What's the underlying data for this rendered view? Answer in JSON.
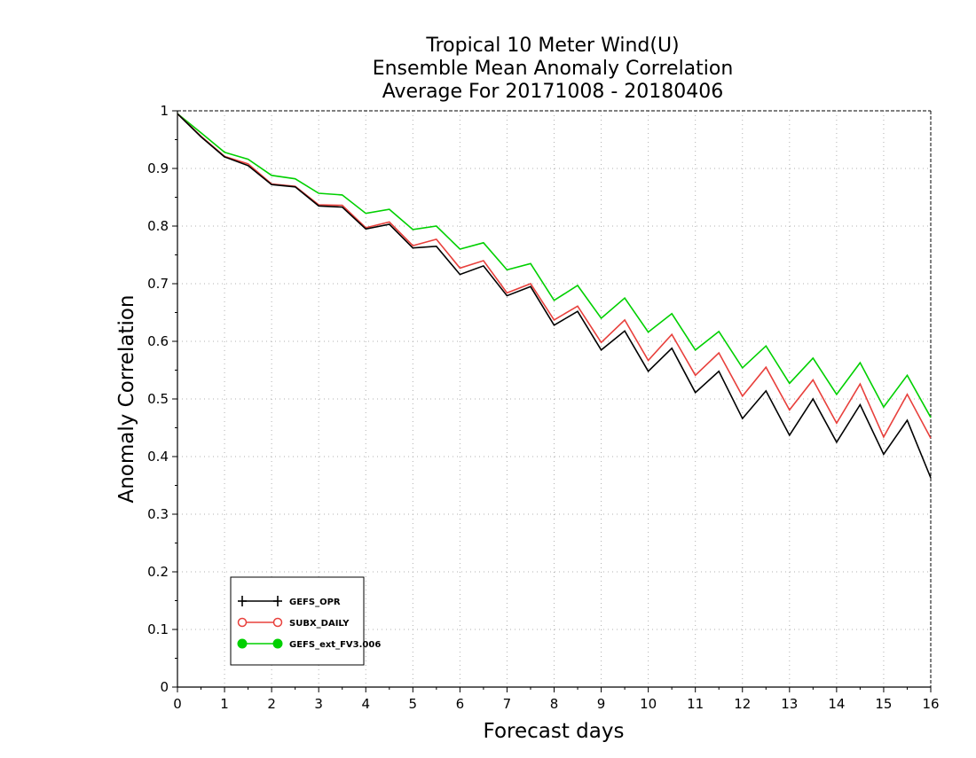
{
  "chart_data": {
    "type": "line",
    "title_lines": [
      "Tropical 10 Meter Wind(U)",
      "Ensemble Mean Anomaly Correlation",
      "Average For 20171008 - 20180406"
    ],
    "xlabel": "Forecast days",
    "ylabel": "Anomaly Correlation",
    "xlim": [
      0,
      16
    ],
    "ylim": [
      0,
      1
    ],
    "xticks": [
      "0",
      "1",
      "2",
      "3",
      "4",
      "5",
      "6",
      "7",
      "8",
      "9",
      "10",
      "11",
      "12",
      "13",
      "14",
      "15",
      "16"
    ],
    "yticks": [
      "0",
      "0.1",
      "0.2",
      "0.3",
      "0.4",
      "0.5",
      "0.6",
      "0.7",
      "0.8",
      "0.9",
      "1"
    ],
    "grid": true,
    "legend_position": "bottom-left",
    "x": [
      0,
      0.5,
      1,
      1.5,
      2,
      2.5,
      3,
      3.5,
      4,
      4.5,
      5,
      5.5,
      6,
      6.5,
      7,
      7.5,
      8,
      8.5,
      9,
      9.5,
      10,
      10.5,
      11,
      11.5,
      12,
      12.5,
      13,
      13.5,
      14,
      14.5,
      15,
      15.5,
      16
    ],
    "series": [
      {
        "name": "GEFS_OPR",
        "color": "#000000",
        "marker": "plus",
        "values": [
          0.995,
          0.955,
          0.92,
          0.905,
          0.872,
          0.868,
          0.835,
          0.833,
          0.795,
          0.803,
          0.762,
          0.765,
          0.716,
          0.731,
          0.679,
          0.695,
          0.628,
          0.652,
          0.585,
          0.618,
          0.548,
          0.588,
          0.511,
          0.548,
          0.466,
          0.514,
          0.437,
          0.5,
          0.425,
          0.49,
          0.404,
          0.463,
          0.363
        ]
      },
      {
        "name": "SUBX_DAILY",
        "color": "#e8403c",
        "marker": "open-circle",
        "values": [
          0.995,
          0.956,
          0.921,
          0.908,
          0.873,
          0.869,
          0.837,
          0.836,
          0.797,
          0.807,
          0.766,
          0.777,
          0.727,
          0.74,
          0.684,
          0.7,
          0.637,
          0.661,
          0.598,
          0.637,
          0.567,
          0.612,
          0.541,
          0.58,
          0.505,
          0.555,
          0.481,
          0.533,
          0.458,
          0.526,
          0.434,
          0.508,
          0.432
        ]
      },
      {
        "name": "GEFS_ext_FV3.006",
        "color": "#00d000",
        "marker": "filled-circle",
        "values": [
          0.995,
          0.962,
          0.928,
          0.916,
          0.888,
          0.882,
          0.857,
          0.854,
          0.822,
          0.829,
          0.794,
          0.8,
          0.76,
          0.771,
          0.724,
          0.735,
          0.671,
          0.697,
          0.64,
          0.675,
          0.616,
          0.648,
          0.585,
          0.617,
          0.554,
          0.592,
          0.527,
          0.571,
          0.508,
          0.563,
          0.486,
          0.541,
          0.468
        ]
      }
    ]
  }
}
